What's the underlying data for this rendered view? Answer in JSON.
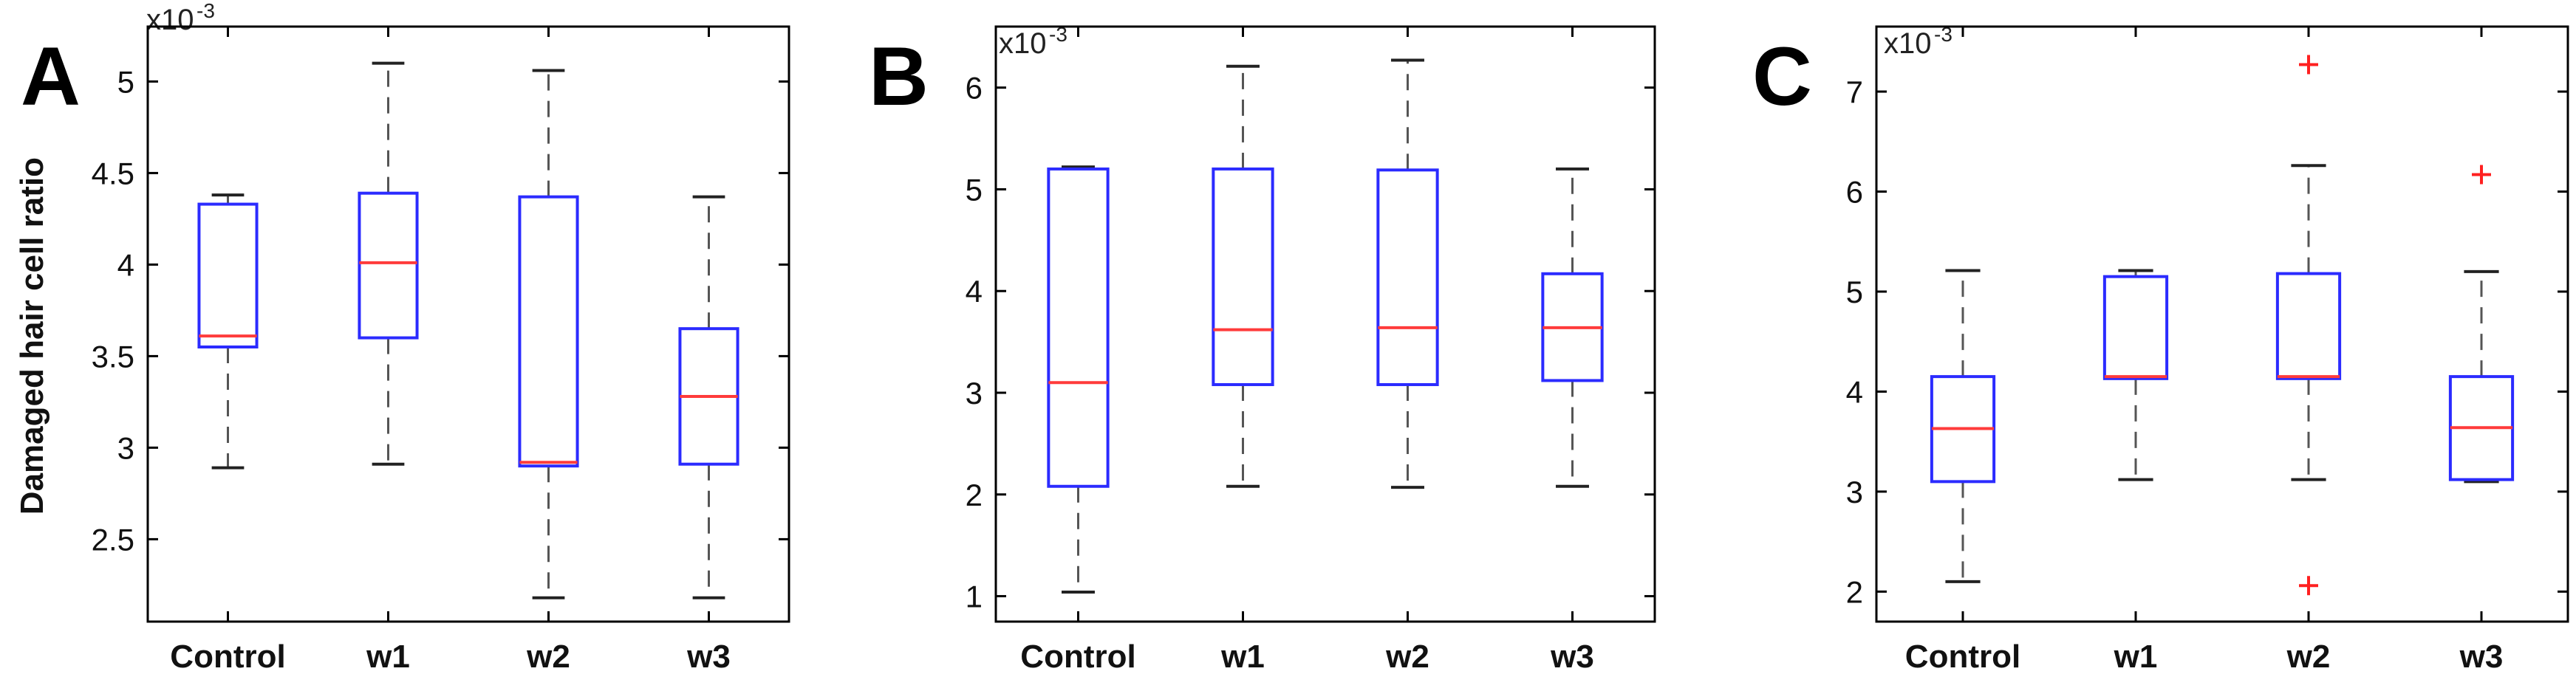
{
  "colors": {
    "box": "#2b2bff",
    "median": "#ff3b3b",
    "whisker": "#555555",
    "outlier": "#ff2020",
    "axis": "#000000"
  },
  "chart_data": [
    {
      "panel": "A",
      "type": "box",
      "ylabel": "Damaged hair cell ratio",
      "exponent_base": "x10",
      "exponent": "-3",
      "ylim": [
        2.05,
        5.3
      ],
      "yticks": [
        2.5,
        3,
        3.5,
        4,
        4.5,
        5
      ],
      "ytick_labels": [
        "2.5",
        "3",
        "3.5",
        "4",
        "4.5",
        "5"
      ],
      "categories": [
        "Control",
        "w1",
        "w2",
        "w3"
      ],
      "boxes": [
        {
          "whisker_low": 2.89,
          "q1": 3.55,
          "median": 3.61,
          "q3": 4.33,
          "whisker_high": 4.38,
          "outliers": []
        },
        {
          "whisker_low": 2.91,
          "q1": 3.6,
          "median": 4.01,
          "q3": 4.39,
          "whisker_high": 5.1,
          "outliers": []
        },
        {
          "whisker_low": 2.18,
          "q1": 2.9,
          "median": 2.92,
          "q3": 4.37,
          "whisker_high": 5.06,
          "outliers": []
        },
        {
          "whisker_low": 2.18,
          "q1": 2.91,
          "median": 3.28,
          "q3": 3.65,
          "whisker_high": 4.37,
          "outliers": []
        }
      ]
    },
    {
      "panel": "B",
      "type": "box",
      "ylabel": "",
      "exponent_base": "x10",
      "exponent": "-3",
      "ylim": [
        0.75,
        6.6
      ],
      "yticks": [
        1,
        2,
        3,
        4,
        5,
        6
      ],
      "ytick_labels": [
        "1",
        "2",
        "3",
        "4",
        "5",
        "6"
      ],
      "categories": [
        "Control",
        "w1",
        "w2",
        "w3"
      ],
      "boxes": [
        {
          "whisker_low": 1.04,
          "q1": 2.08,
          "median": 3.1,
          "q3": 5.2,
          "whisker_high": 5.22,
          "outliers": []
        },
        {
          "whisker_low": 2.08,
          "q1": 3.08,
          "median": 3.62,
          "q3": 5.2,
          "whisker_high": 6.21,
          "outliers": []
        },
        {
          "whisker_low": 2.07,
          "q1": 3.08,
          "median": 3.64,
          "q3": 5.19,
          "whisker_high": 6.27,
          "outliers": []
        },
        {
          "whisker_low": 2.08,
          "q1": 3.12,
          "median": 3.64,
          "q3": 4.17,
          "whisker_high": 5.2,
          "outliers": []
        }
      ]
    },
    {
      "panel": "C",
      "type": "box",
      "ylabel": "",
      "exponent_base": "x10",
      "exponent": "-3",
      "ylim": [
        1.7,
        7.65
      ],
      "yticks": [
        2,
        3,
        4,
        5,
        6,
        7
      ],
      "ytick_labels": [
        "2",
        "3",
        "4",
        "5",
        "6",
        "7"
      ],
      "categories": [
        "Control",
        "w1",
        "w2",
        "w3"
      ],
      "boxes": [
        {
          "whisker_low": 2.1,
          "q1": 3.1,
          "median": 3.63,
          "q3": 4.15,
          "whisker_high": 5.21,
          "outliers": []
        },
        {
          "whisker_low": 3.12,
          "q1": 4.13,
          "median": 4.15,
          "q3": 5.15,
          "whisker_high": 5.21,
          "outliers": []
        },
        {
          "whisker_low": 3.12,
          "q1": 4.13,
          "median": 4.15,
          "q3": 5.18,
          "whisker_high": 6.26,
          "outliers": [
            7.27,
            2.06
          ]
        },
        {
          "whisker_low": 3.1,
          "q1": 3.12,
          "median": 3.64,
          "q3": 4.15,
          "whisker_high": 5.2,
          "outliers": [
            6.17
          ]
        }
      ]
    }
  ]
}
